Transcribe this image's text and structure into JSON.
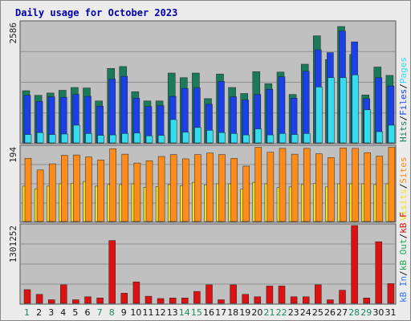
{
  "title": "Daily usage for October 2023",
  "colors": {
    "hits": "#1a7a5a",
    "files": "#1a40e6",
    "pages": "#33ddee",
    "visits": "#f2e020",
    "sites": "#ff8c1a",
    "kb_in": "#3377ee",
    "kb_out": "#22aa55",
    "kb_f": "#dd1111",
    "weekday_label": "#111111",
    "weekend_label": "#1a8a5a",
    "panel_bg": "#c0c0c0",
    "frame_bg": "#ececec"
  },
  "chart_data": [
    {
      "type": "bar",
      "name": "hits_files_pages",
      "categories": [
        "1",
        "2",
        "3",
        "4",
        "5",
        "6",
        "7",
        "8",
        "9",
        "10",
        "11",
        "12",
        "13",
        "14",
        "15",
        "16",
        "17",
        "18",
        "19",
        "20",
        "21",
        "22",
        "23",
        "24",
        "25",
        "26",
        "27",
        "28",
        "29",
        "30",
        "31"
      ],
      "weekend_days": [
        1,
        7,
        8,
        14,
        15,
        21,
        22,
        28,
        29
      ],
      "ymax_label": "2586",
      "ylim": [
        0,
        2586
      ],
      "series": [
        {
          "name": "Hits",
          "values": [
            1120,
            1020,
            1070,
            1130,
            1190,
            1180,
            900,
            1600,
            1640,
            1100,
            900,
            900,
            1500,
            1400,
            1500,
            950,
            1480,
            1190,
            1060,
            1530,
            1270,
            1520,
            1040,
            1690,
            2300,
            1790,
            2500,
            1900,
            1030,
            1630,
            1450
          ]
        },
        {
          "name": "Files",
          "values": [
            1020,
            890,
            990,
            980,
            1040,
            1000,
            790,
            1370,
            1430,
            960,
            780,
            800,
            1000,
            1170,
            1180,
            830,
            1320,
            990,
            920,
            1040,
            1150,
            1420,
            960,
            1540,
            2000,
            1940,
            2400,
            2170,
            950,
            1400,
            1220
          ]
        },
        {
          "name": "Pages",
          "values": [
            180,
            220,
            180,
            190,
            380,
            200,
            160,
            170,
            200,
            210,
            150,
            160,
            500,
            230,
            330,
            270,
            220,
            200,
            170,
            300,
            170,
            200,
            180,
            200,
            1200,
            1400,
            1400,
            1460,
            710,
            240,
            380
          ]
        }
      ]
    },
    {
      "type": "bar",
      "name": "visits_sites",
      "categories": [
        "1",
        "2",
        "3",
        "4",
        "5",
        "6",
        "7",
        "8",
        "9",
        "10",
        "11",
        "12",
        "13",
        "14",
        "15",
        "16",
        "17",
        "18",
        "19",
        "20",
        "21",
        "22",
        "23",
        "24",
        "25",
        "26",
        "27",
        "28",
        "29",
        "30",
        "31"
      ],
      "ymax_label": "194",
      "ylim": [
        0,
        194
      ],
      "series": [
        {
          "name": "Visits",
          "values": [
            92,
            85,
            92,
            98,
            99,
            104,
            92,
            96,
            96,
            98,
            89,
            91,
            96,
            93,
            102,
            95,
            98,
            98,
            84,
            102,
            98,
            88,
            90,
            96,
            99,
            90,
            98,
            98,
            98,
            96,
            98
          ]
        },
        {
          "name": "Sites",
          "values": [
            164,
            134,
            150,
            172,
            173,
            168,
            160,
            189,
            175,
            152,
            158,
            169,
            174,
            163,
            174,
            178,
            174,
            164,
            144,
            193,
            180,
            190,
            175,
            190,
            176,
            166,
            191,
            190,
            179,
            170,
            193
          ]
        }
      ]
    },
    {
      "type": "bar",
      "name": "kbytes",
      "categories": [
        "1",
        "2",
        "3",
        "4",
        "5",
        "6",
        "7",
        "8",
        "9",
        "10",
        "11",
        "12",
        "13",
        "14",
        "15",
        "16",
        "17",
        "18",
        "19",
        "20",
        "21",
        "22",
        "23",
        "24",
        "25",
        "26",
        "27",
        "28",
        "29",
        "30",
        "31"
      ],
      "ymax_label": "1301252",
      "ylim": [
        0,
        1301252
      ],
      "series": [
        {
          "name": "KB F",
          "values": [
            230000,
            150000,
            60000,
            310000,
            60000,
            110000,
            90000,
            1050000,
            170000,
            360000,
            120000,
            80000,
            90000,
            90000,
            200000,
            310000,
            60000,
            310000,
            150000,
            110000,
            290000,
            290000,
            110000,
            110000,
            310000,
            60000,
            220000,
            1301252,
            90000,
            1030000,
            330000
          ]
        }
      ]
    }
  ],
  "side_labels": {
    "top": [
      {
        "text": "Hits",
        "color_key": "hits"
      },
      {
        "text": "/",
        "color_key": "weekday_label"
      },
      {
        "text": "Files",
        "color_key": "files"
      },
      {
        "text": "/",
        "color_key": "weekday_label"
      },
      {
        "text": "Pages",
        "color_key": "pages"
      }
    ],
    "middle": [
      {
        "text": "Visits",
        "color_key": "visits"
      },
      {
        "text": "/",
        "color_key": "weekday_label"
      },
      {
        "text": "Sites",
        "color_key": "sites"
      }
    ],
    "bottom": [
      {
        "text": "kB In",
        "color_key": "kb_in"
      },
      {
        "text": "/",
        "color_key": "weekday_label"
      },
      {
        "text": "kB Out",
        "color_key": "kb_out"
      },
      {
        "text": "/",
        "color_key": "weekday_label"
      },
      {
        "text": "kB F",
        "color_key": "kb_f"
      }
    ]
  }
}
